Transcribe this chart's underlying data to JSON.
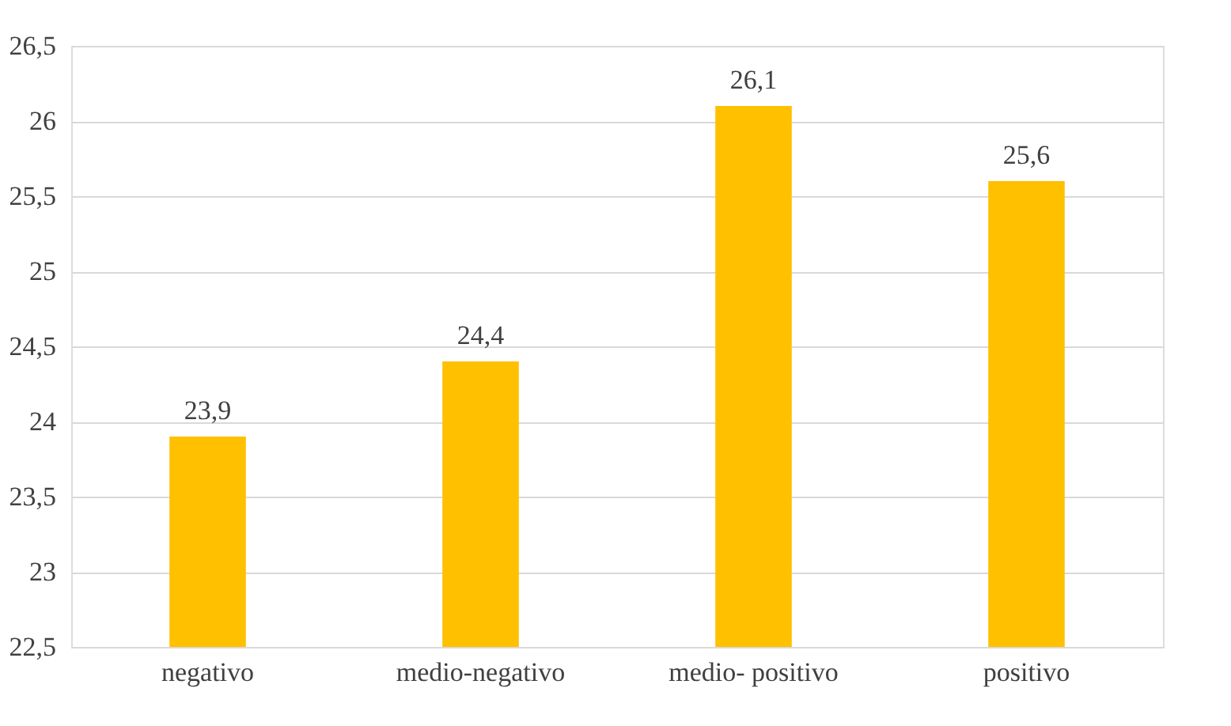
{
  "chart_data": {
    "type": "bar",
    "categories": [
      "negativo",
      "medio-negativo",
      "medio- positivo",
      "positivo"
    ],
    "values": [
      23.9,
      24.4,
      26.1,
      25.6
    ],
    "value_labels": [
      "23,9",
      "24,4",
      "26,1",
      "25,6"
    ],
    "color": "#ffc000",
    "ylim": [
      22.5,
      26.5
    ],
    "yticks": [
      {
        "value": 22.5,
        "label": "22,5"
      },
      23,
      {
        "value": 23.5,
        "label": "23,5"
      },
      24,
      {
        "value": 24.5,
        "label": "24,5"
      },
      25,
      {
        "value": 25.5,
        "label": "25,5"
      },
      26,
      {
        "value": 26.5,
        "label": "26,5"
      }
    ],
    "grid": "y"
  }
}
